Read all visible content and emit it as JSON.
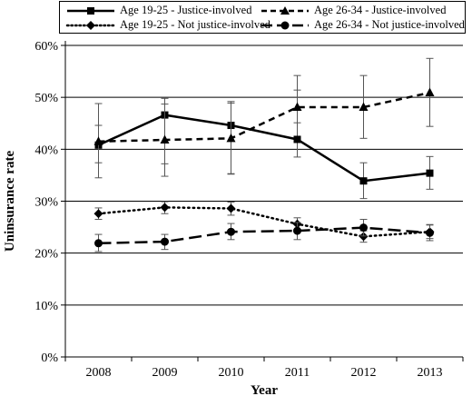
{
  "chart_data": {
    "type": "line",
    "xlabel": "Year",
    "ylabel": "Uninsurance rate",
    "categories": [
      "2008",
      "2009",
      "2010",
      "2011",
      "2012",
      "2013"
    ],
    "ylim": [
      0,
      60
    ],
    "yticks": [
      "0%",
      "10%",
      "20%",
      "30%",
      "40%",
      "50%",
      "60%"
    ],
    "grid": "horizontal",
    "legend_position": "top",
    "series": [
      {
        "name": "Age 19-25 - Justice-involved",
        "marker": "square",
        "line": "solid",
        "values": [
          40.8,
          46.6,
          44.6,
          41.9,
          33.9,
          35.4
        ],
        "error_low": [
          34.5,
          34.8,
          35.2,
          38.5,
          30.5,
          32.3
        ],
        "error_high": [
          48.8,
          49.8,
          49.2,
          54.2,
          37.4,
          38.6
        ]
      },
      {
        "name": "Age 26-34 - Justice-involved",
        "marker": "triangle",
        "line": "dashed",
        "values": [
          41.5,
          41.8,
          42.1,
          48.1,
          48.1,
          50.9
        ],
        "error_low": [
          37.4,
          37.2,
          35.3,
          45.1,
          42.1,
          44.4
        ],
        "error_high": [
          44.6,
          48.7,
          48.9,
          51.4,
          54.2,
          57.5
        ]
      },
      {
        "name": "Age 19-25 - Not justice-involved",
        "marker": "diamond",
        "line": "dotted",
        "values": [
          27.6,
          28.8,
          28.6,
          25.6,
          23.2,
          24.1
        ],
        "error_low": [
          26.5,
          27.6,
          27.3,
          24.4,
          22.1,
          22.8
        ],
        "error_high": [
          28.7,
          29.9,
          29.8,
          26.8,
          24.3,
          25.5
        ]
      },
      {
        "name": "Age 26-34 - Not justice-involved",
        "marker": "circle",
        "line": "long-dash",
        "values": [
          21.9,
          22.2,
          24.1,
          24.3,
          24.9,
          23.9
        ],
        "error_low": [
          20.3,
          20.7,
          22.6,
          22.6,
          23.3,
          22.4
        ],
        "error_high": [
          23.6,
          23.6,
          25.7,
          25.9,
          26.5,
          25.4
        ]
      }
    ]
  }
}
